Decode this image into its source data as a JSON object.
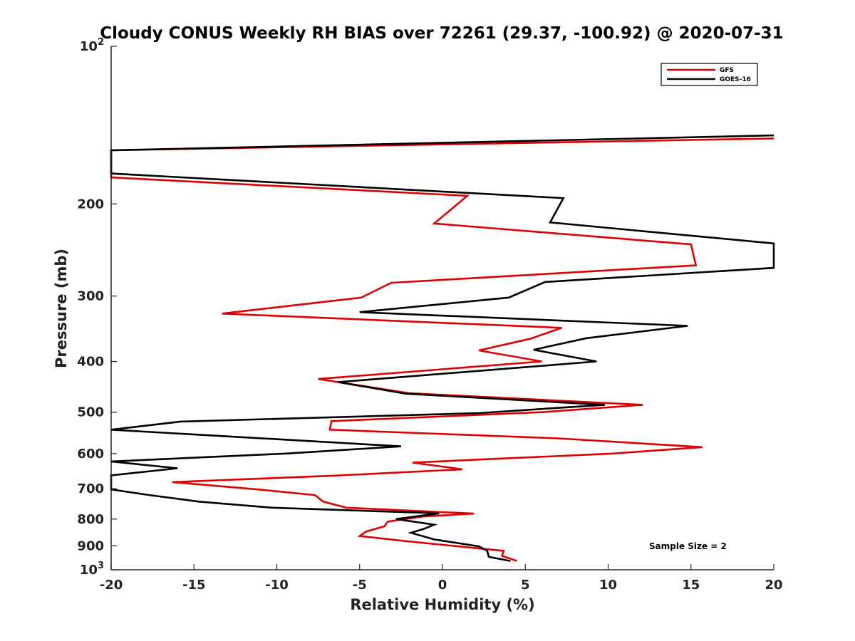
{
  "chart_data": {
    "type": "line",
    "title": "Cloudy CONUS Weekly RH BIAS over 72261 (29.37, -100.92) @ 2020-07-31",
    "xlabel": "Relative Humidity (%)",
    "ylabel": "Pressure (mb)",
    "xlim": [
      -20,
      20
    ],
    "ylim": [
      100,
      1000
    ],
    "y_scale": "log",
    "y_reversed": true,
    "grid": false,
    "legend_position": "top-right",
    "x_ticks": [
      {
        "value": -20,
        "label": "-20"
      },
      {
        "value": -15,
        "label": "-15"
      },
      {
        "value": -10,
        "label": "-10"
      },
      {
        "value": -5,
        "label": "-5"
      },
      {
        "value": 0,
        "label": "0"
      },
      {
        "value": 5,
        "label": "5"
      },
      {
        "value": 10,
        "label": "10"
      },
      {
        "value": 15,
        "label": "15"
      },
      {
        "value": 20,
        "label": "20"
      }
    ],
    "y_ticks": [
      {
        "value": 100,
        "base": "10",
        "exp": "2"
      },
      {
        "value": 200,
        "label": "200"
      },
      {
        "value": 300,
        "label": "300"
      },
      {
        "value": 400,
        "label": "400"
      },
      {
        "value": 500,
        "label": "500"
      },
      {
        "value": 600,
        "label": "600"
      },
      {
        "value": 700,
        "label": "700"
      },
      {
        "value": 800,
        "label": "800"
      },
      {
        "value": 900,
        "label": "900"
      },
      {
        "value": 1000,
        "base": "10",
        "exp": "3"
      }
    ],
    "series": [
      {
        "name": "GFS",
        "color": "#e00000",
        "points": [
          {
            "x": 20,
            "y": 150
          },
          {
            "x": -20,
            "y": 158
          },
          {
            "x": -20,
            "y": 178
          },
          {
            "x": 1.5,
            "y": 193
          },
          {
            "x": -0.5,
            "y": 218
          },
          {
            "x": 15.0,
            "y": 239
          },
          {
            "x": 15.3,
            "y": 262
          },
          {
            "x": -3.1,
            "y": 283
          },
          {
            "x": -4.9,
            "y": 302
          },
          {
            "x": -13.3,
            "y": 324
          },
          {
            "x": 7.2,
            "y": 345
          },
          {
            "x": 5.3,
            "y": 362
          },
          {
            "x": 2.2,
            "y": 381
          },
          {
            "x": 6.0,
            "y": 400
          },
          {
            "x": -7.5,
            "y": 432
          },
          {
            "x": -2.0,
            "y": 460
          },
          {
            "x": 12.1,
            "y": 484
          },
          {
            "x": 6.0,
            "y": 500
          },
          {
            "x": -6.7,
            "y": 520
          },
          {
            "x": -6.8,
            "y": 540
          },
          {
            "x": 7.0,
            "y": 561
          },
          {
            "x": 15.7,
            "y": 583
          },
          {
            "x": 10.2,
            "y": 600
          },
          {
            "x": -1.8,
            "y": 624
          },
          {
            "x": 1.2,
            "y": 643
          },
          {
            "x": -6.5,
            "y": 661
          },
          {
            "x": -16.3,
            "y": 680
          },
          {
            "x": -11.2,
            "y": 702
          },
          {
            "x": -7.7,
            "y": 720
          },
          {
            "x": -7.2,
            "y": 741
          },
          {
            "x": -5.8,
            "y": 761
          },
          {
            "x": 1.9,
            "y": 781
          },
          {
            "x": -1.2,
            "y": 791
          },
          {
            "x": -3.3,
            "y": 809
          },
          {
            "x": -3.5,
            "y": 826
          },
          {
            "x": -4.6,
            "y": 845
          },
          {
            "x": -5.0,
            "y": 862
          },
          {
            "x": -2.3,
            "y": 881
          },
          {
            "x": 3.7,
            "y": 920
          },
          {
            "x": 3.6,
            "y": 941
          },
          {
            "x": 4.5,
            "y": 962
          }
        ]
      },
      {
        "name": "GOES-16",
        "color": "#000000",
        "points": [
          {
            "x": 20,
            "y": 148
          },
          {
            "x": -20,
            "y": 158
          },
          {
            "x": -20,
            "y": 175
          },
          {
            "x": 7.3,
            "y": 195
          },
          {
            "x": 6.5,
            "y": 217
          },
          {
            "x": 20,
            "y": 238
          },
          {
            "x": 20,
            "y": 265
          },
          {
            "x": 6.2,
            "y": 282
          },
          {
            "x": 4.0,
            "y": 302
          },
          {
            "x": -5.0,
            "y": 322
          },
          {
            "x": 14.8,
            "y": 342
          },
          {
            "x": 8.7,
            "y": 361
          },
          {
            "x": 5.5,
            "y": 380
          },
          {
            "x": 9.3,
            "y": 400
          },
          {
            "x": -6.3,
            "y": 438
          },
          {
            "x": -2.2,
            "y": 461
          },
          {
            "x": 9.8,
            "y": 484
          },
          {
            "x": 2.2,
            "y": 502
          },
          {
            "x": -15.8,
            "y": 521
          },
          {
            "x": -20,
            "y": 540
          },
          {
            "x": -2.5,
            "y": 581
          },
          {
            "x": -9.5,
            "y": 600
          },
          {
            "x": -20,
            "y": 621
          },
          {
            "x": -16.0,
            "y": 640
          },
          {
            "x": -20,
            "y": 660
          },
          {
            "x": -20,
            "y": 702
          },
          {
            "x": -17.7,
            "y": 720
          },
          {
            "x": -14.7,
            "y": 741
          },
          {
            "x": -10.3,
            "y": 761
          },
          {
            "x": -0.2,
            "y": 780
          },
          {
            "x": -2.8,
            "y": 800
          },
          {
            "x": -0.5,
            "y": 820
          },
          {
            "x": -1.1,
            "y": 835
          },
          {
            "x": -1.9,
            "y": 850
          },
          {
            "x": -0.5,
            "y": 875
          },
          {
            "x": 2.2,
            "y": 902
          },
          {
            "x": 2.7,
            "y": 920
          },
          {
            "x": 2.8,
            "y": 945
          },
          {
            "x": 4.1,
            "y": 962
          }
        ]
      }
    ],
    "annotations": [
      "Sample Size = 2"
    ]
  }
}
